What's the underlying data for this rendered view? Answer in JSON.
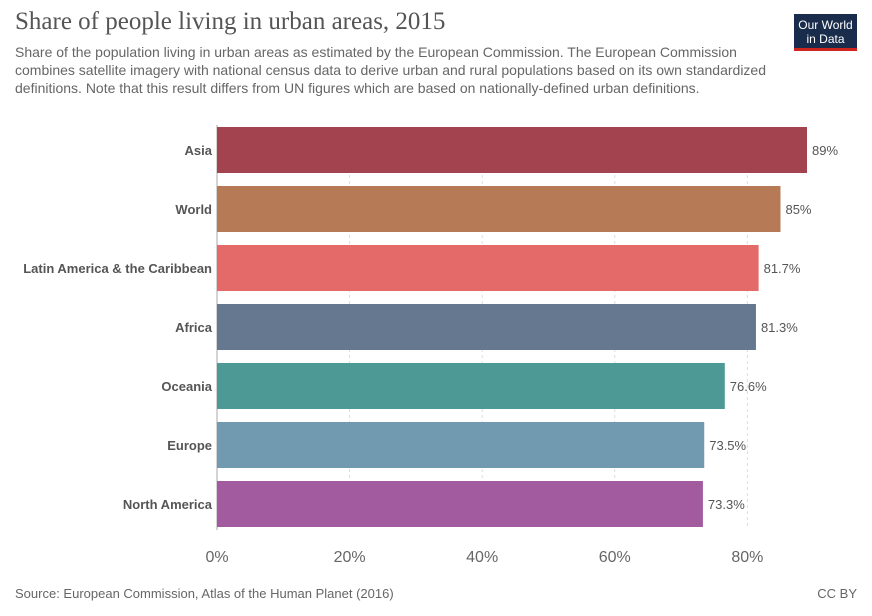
{
  "header": {
    "title": "Share of people living in urban areas, 2015",
    "subtitle": "Share of the population living in urban areas as estimated by the European Commission. The European Commission combines satellite imagery with national census data to derive urban and rural populations based on its own standardized definitions. Note that this result differs from UN figures which are based on nationally-defined urban definitions.",
    "logo_line1": "Our World",
    "logo_line2": "in Data"
  },
  "footer": {
    "source": "Source: European Commission, Atlas of the Human Planet (2016)",
    "license": "CC BY"
  },
  "chart_data": {
    "type": "bar",
    "orientation": "horizontal",
    "title": "Share of people living in urban areas, 2015",
    "categories": [
      "Asia",
      "World",
      "Latin America & the Caribbean",
      "Africa",
      "Oceania",
      "Europe",
      "North America"
    ],
    "values": [
      89,
      85,
      81.7,
      81.3,
      76.6,
      73.5,
      73.3
    ],
    "value_labels": [
      "89%",
      "85%",
      "81.7%",
      "81.3%",
      "76.6%",
      "73.5%",
      "73.3%"
    ],
    "colors": [
      "#a2434f",
      "#b67a57",
      "#e46a69",
      "#667790",
      "#4c9996",
      "#7199b0",
      "#a15b9e"
    ],
    "xlim": [
      0,
      89
    ],
    "xticks": [
      0,
      20,
      40,
      60,
      80
    ],
    "xtick_labels": [
      "0%",
      "20%",
      "40%",
      "60%",
      "80%"
    ],
    "grid": true,
    "xlabel": "",
    "ylabel": ""
  }
}
